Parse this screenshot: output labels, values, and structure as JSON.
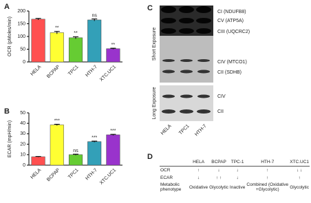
{
  "chart_data": [
    {
      "type": "bar",
      "label": "A",
      "y_label": "OCR  (pMoles/min)",
      "categories": [
        "HELA",
        "BCPAP",
        "TPC1",
        "HTH-7",
        "XTC.UC1"
      ],
      "values": [
        168,
        115,
        95,
        165,
        52
      ],
      "errors": [
        3,
        5,
        4,
        4,
        2
      ],
      "significance": [
        "**",
        "**",
        "ns",
        "**"
      ],
      "colors": [
        "#ff5050",
        "#ffff33",
        "#66cc33",
        "#33a0b8",
        "#9933cc"
      ],
      "ylim": [
        0,
        200
      ],
      "yticks": [
        0,
        50,
        100,
        150,
        200
      ]
    },
    {
      "type": "bar",
      "label": "B",
      "y_label": "ECAR (mpH/min)",
      "categories": [
        "HELA",
        "BCPAP",
        "TPC1",
        "HTH-7",
        "XTC.UC1"
      ],
      "values": [
        8,
        38.5,
        10,
        22.5,
        29
      ],
      "errors": [
        0.3,
        0.6,
        0.5,
        0.5,
        0.5
      ],
      "significance": [
        "***",
        "ns",
        "***",
        "***"
      ],
      "colors": [
        "#ff5050",
        "#ffff33",
        "#66cc33",
        "#33a0b8",
        "#9933cc"
      ],
      "ylim": [
        0,
        50
      ],
      "yticks": [
        0,
        10,
        20,
        30,
        40,
        50
      ]
    }
  ],
  "blot": {
    "label": "C",
    "short_exposure": "Short Exposure",
    "long_exposure": "Long Exposure",
    "short_bands": [
      "CI (NDUFB8)",
      "CV (ATP5A)",
      "CIII (UQCRC2)",
      "CIV (MTCO1)",
      "CII (SDHB)"
    ],
    "long_bands": [
      "CIV",
      "CII"
    ],
    "lanes": [
      "HELA",
      "TPC1",
      "HTH-7"
    ]
  },
  "table": {
    "label": "D",
    "header": [
      "HELA",
      "BCPAP",
      "TPC-1",
      "HTH-7",
      "XTC.UC1"
    ],
    "rows": [
      [
        "OCR",
        "↑",
        "↓",
        "↓",
        "↑",
        "↓ ↓"
      ],
      [
        "ECAR",
        "↓",
        "↑ ↑",
        "↓",
        "↑",
        "↑"
      ],
      [
        "Metabolic phenotype",
        "Oxidative",
        "Glycolytic",
        "Inactive",
        "Combined (Oxidative +Glycolytic)",
        "Glycolytic"
      ]
    ]
  }
}
